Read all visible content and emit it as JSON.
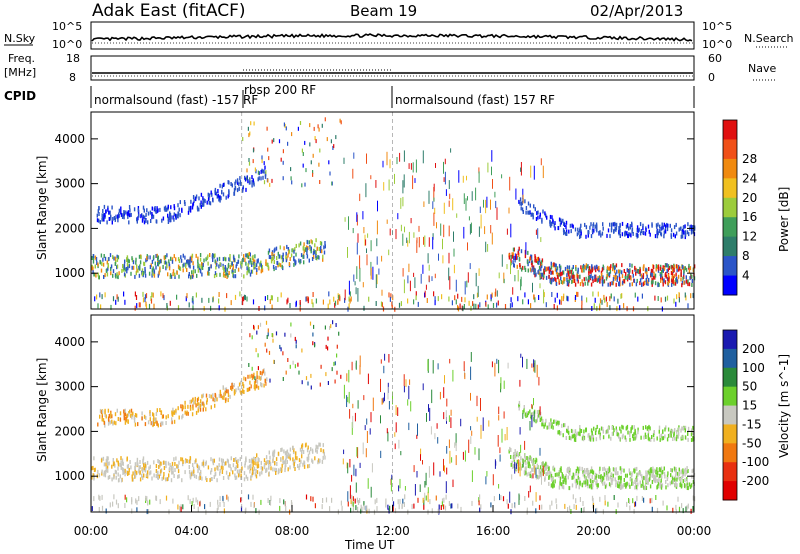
{
  "header": {
    "title": "Adak East (fitACF)",
    "beam": "Beam 19",
    "date": "02/Apr/2013"
  },
  "top_panels": {
    "nsky_label": "N.Sky",
    "nsky_ticks": [
      "10^5",
      "10^0"
    ],
    "nsearch_label": "N.Search",
    "nsearch_ticks": [
      "10^5",
      "10^0"
    ],
    "freq_label": "Freq.",
    "freq_unit": "[MHz]",
    "freq_ticks": [
      "18",
      "8"
    ],
    "nave_label": "Nave",
    "nave_ticks": [
      "60",
      "0"
    ],
    "cpid_label": "CPID",
    "cpid_segments": [
      "normalsound (fast) -157 RF",
      "rbsp 200 RF",
      "normalsound (fast) 157 RF"
    ]
  },
  "colors": {
    "power_scale": [
      "#0000ff",
      "#2b55c8",
      "#2e7d6a",
      "#3f9e5a",
      "#9ccc3c",
      "#f0c020",
      "#f08a10",
      "#f05018",
      "#e01010"
    ],
    "velocity_scale": [
      "#1a1ab0",
      "#1f5f9f",
      "#2a8a3a",
      "#6cd02c",
      "#c8c8c0",
      "#f0b020",
      "#f07810",
      "#e83010",
      "#e00000"
    ],
    "ground": "#c8c8c0"
  },
  "chart_data": [
    {
      "type": "heatmap",
      "title": "Power",
      "ylabel": "Slant Range [km]",
      "xlabel": "Time UT",
      "x_ticks": [
        "00:00",
        "04:00",
        "08:00",
        "12:00",
        "16:00",
        "20:00",
        "00:00"
      ],
      "y_ticks": [
        1000,
        2000,
        3000,
        4000
      ],
      "ylim": [
        200,
        4600
      ],
      "colorbar_label": "Power [dB]",
      "colorbar_ticks": [
        4,
        8,
        12,
        16,
        20,
        24,
        28
      ]
    },
    {
      "type": "heatmap",
      "title": "Velocity",
      "ylabel": "Slant Range [km]",
      "xlabel": "Time UT",
      "x_ticks": [
        "00:00",
        "04:00",
        "08:00",
        "12:00",
        "16:00",
        "20:00",
        "00:00"
      ],
      "y_ticks": [
        1000,
        2000,
        3000,
        4000
      ],
      "ylim": [
        200,
        4600
      ],
      "colorbar_label": "Velocity [m s^-1]",
      "colorbar_ticks": [
        200,
        100,
        50,
        15,
        -15,
        -50,
        -100,
        -200
      ]
    }
  ],
  "xaxis_label": "Time UT"
}
